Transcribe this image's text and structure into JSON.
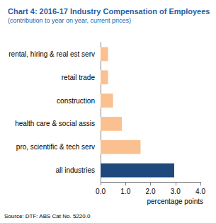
{
  "chart_data": {
    "type": "bar",
    "orientation": "horizontal",
    "title": "Chart 4: 2016-17 Industry Compensation of Employees",
    "subtitle": "(contribution to year on year, current prices)",
    "categories": [
      "rental, hiring & real est serv",
      "retail trade",
      "construction",
      "health care & social assis",
      "pro, scientific & tech serv",
      "all industries"
    ],
    "values": [
      0.3,
      0.3,
      0.5,
      0.85,
      1.6,
      2.95
    ],
    "colors": [
      "#fac090",
      "#fac090",
      "#fac090",
      "#fac090",
      "#fac090",
      "#1f497d"
    ],
    "xlabel": "percentage points",
    "xlim": [
      0,
      4
    ],
    "xticks": [
      {
        "value": 0,
        "label": "0.0"
      },
      {
        "value": 1,
        "label": "1.0"
      },
      {
        "value": 2,
        "label": "2.0"
      },
      {
        "value": 3,
        "label": "3.0"
      },
      {
        "value": 4,
        "label": "4.0"
      }
    ],
    "grid": false,
    "annotations": [
      "Source: DTF: ABS Cat No. 5220.0"
    ]
  }
}
